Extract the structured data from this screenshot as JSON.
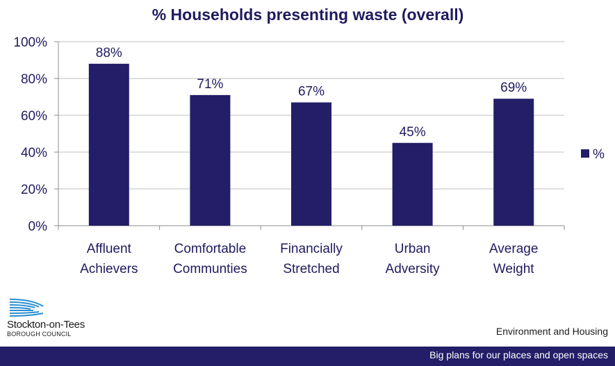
{
  "chart_data": {
    "type": "bar",
    "title": "% Households presenting waste (overall)",
    "categories": [
      [
        "Affluent",
        "Achievers"
      ],
      [
        "Comfortable",
        "Communties"
      ],
      [
        "Financially",
        "Stretched"
      ],
      [
        "Urban",
        "Adversity"
      ],
      [
        "Average",
        "Weight"
      ]
    ],
    "series": [
      {
        "name": "%",
        "values": [
          88,
          71,
          67,
          45,
          69
        ],
        "labels": [
          "88%",
          "71%",
          "67%",
          "45%",
          "69%"
        ]
      }
    ],
    "ylim": [
      0,
      100
    ],
    "yticks": [
      "0%",
      "20%",
      "40%",
      "60%",
      "80%",
      "100%"
    ],
    "grid": true,
    "legend": "right",
    "bar_color": "#231e67"
  },
  "branding": {
    "org_name": "Stockton-on-Tees",
    "org_sub": "BOROUGH COUNCIL",
    "department": "Environment and Housing",
    "tagline": "Big plans for our places and open spaces"
  }
}
